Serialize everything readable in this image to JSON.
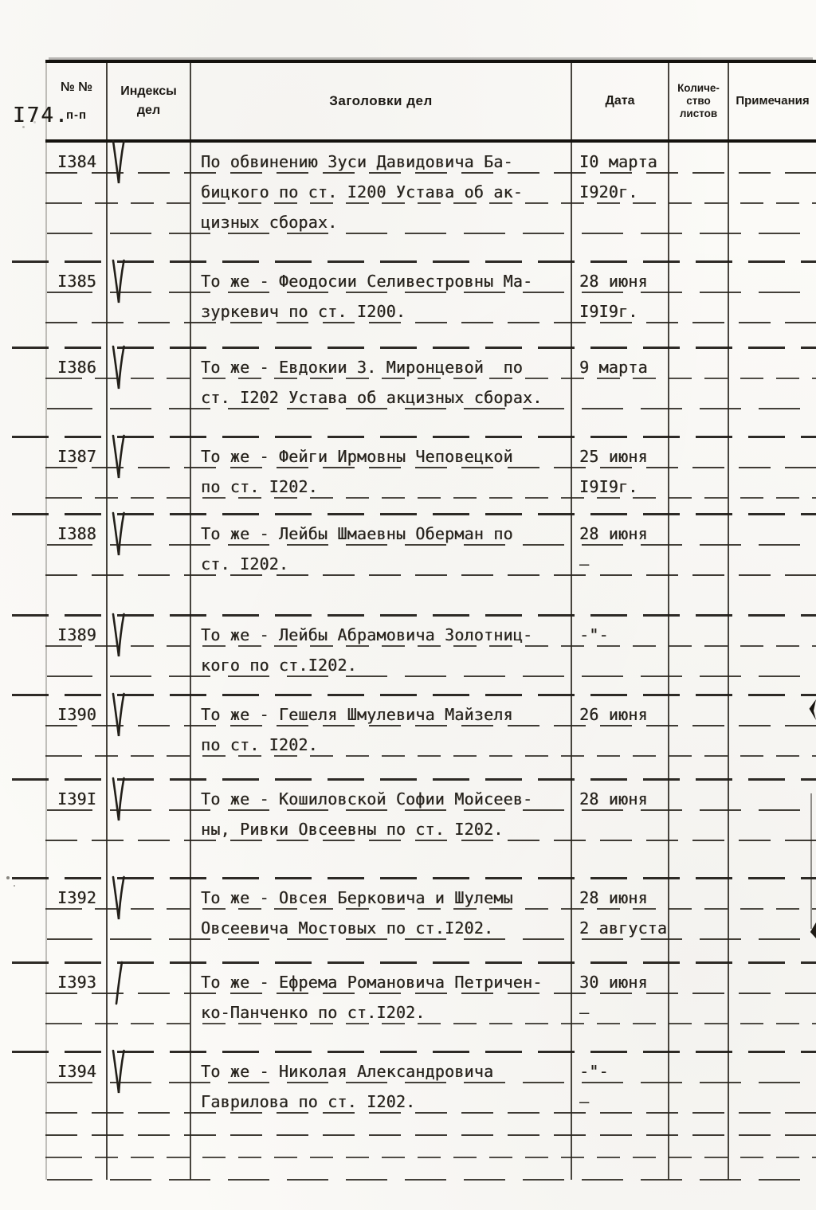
{
  "page": {
    "number": "I74."
  },
  "table": {
    "header": {
      "num": [
        "№ №",
        "п-п"
      ],
      "index": [
        "Индексы",
        "дел"
      ],
      "title": "Заголовки дел",
      "date": "Дата",
      "sheets": [
        "Количе-",
        "ство",
        "листов"
      ],
      "notes": "Примечания"
    },
    "entries": [
      {
        "num": "I384",
        "mark": "checkmark",
        "title_lines": [
          "По обвинению Зуси Давидовича Ба-",
          "бицкого по ст. I200 Устава об ак-",
          "цизных сборах."
        ],
        "date_lines": [
          "I0 марта",
          "I920г.",
          ""
        ]
      },
      {
        "num": "I385",
        "mark": "checkmark",
        "title_lines": [
          "То же - Феодосии Селивестровны Ма-",
          "зуркевич по ст. I200."
        ],
        "date_lines": [
          "28 июня",
          "I9I9г."
        ]
      },
      {
        "num": "I386",
        "mark": "checkmark",
        "title_lines": [
          "То же - Евдокии З. Миронцевой  по",
          "ст. I202 Устава об акцизных сборах."
        ],
        "date_lines": [
          "9 марта",
          ""
        ]
      },
      {
        "num": "I387",
        "mark": "checkmark",
        "title_lines": [
          "То же - Фейги Ирмовны Чеповецкой",
          "по ст. I202."
        ],
        "date_lines": [
          "25 июня",
          "I9I9г."
        ]
      },
      {
        "num": "I388",
        "mark": "checkmark",
        "title_lines": [
          "То же - Лейбы Шмаевны Оберман по",
          "ст. I202."
        ],
        "date_lines": [
          "28 июня",
          "–"
        ]
      },
      {
        "num": "I389",
        "mark": "checkmark",
        "title_lines": [
          "То же - Лейбы Абрамовича Золотниц-",
          "кого по ст.I202."
        ],
        "date_lines": [
          "-\"-",
          ""
        ]
      },
      {
        "num": "I390",
        "mark": "checkmark",
        "title_lines": [
          "То же - Гешеля Шмулевича Майзеля",
          "по ст. I202."
        ],
        "date_lines": [
          "26 июня",
          ""
        ]
      },
      {
        "num": "I39I",
        "mark": "checkmark",
        "title_lines": [
          "То же - Кошиловской Софии Мойсеев-",
          "ны, Ривки Овсеевны по ст. I202."
        ],
        "date_lines": [
          "28 июня",
          ""
        ]
      },
      {
        "num": "I392",
        "mark": "checkmark",
        "title_lines": [
          "То же - Овсея Берковича и Шулемы",
          "Овсеевича Мостовых по ст.I202."
        ],
        "date_lines": [
          "28 июня",
          "2 августа"
        ]
      },
      {
        "num": "I393",
        "mark": "slash",
        "title_lines": [
          "То же - Ефрема Романовича Петричен-",
          "ко-Панченко по ст.I202."
        ],
        "date_lines": [
          "30 июня",
          "–"
        ]
      },
      {
        "num": "I394",
        "mark": "checkmark",
        "title_lines": [
          "То же - Николая Александровича",
          "Гаврилова по ст. I202."
        ],
        "date_lines": [
          "-\"-",
          "–"
        ]
      }
    ]
  }
}
